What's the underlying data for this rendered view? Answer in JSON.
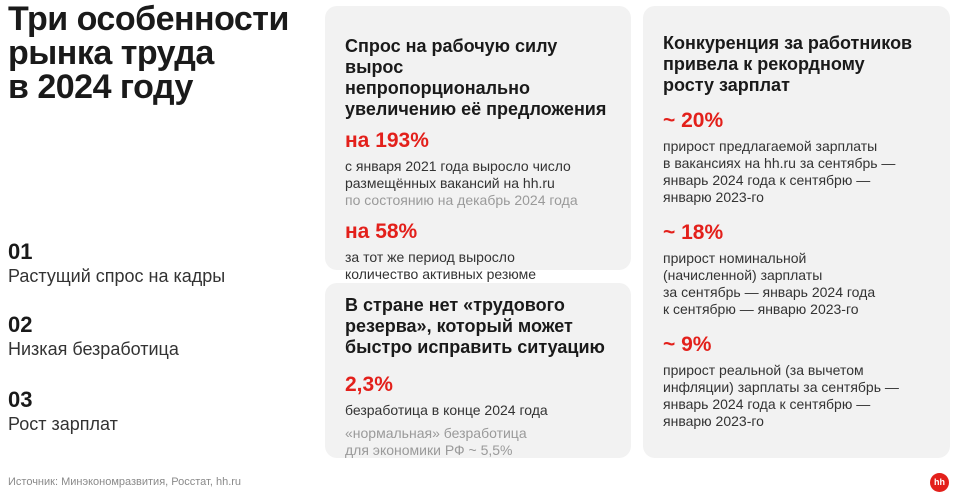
{
  "header": {
    "title": "Три особенности\nрынка труда\nв 2024 году"
  },
  "features": [
    {
      "number": "01",
      "label": "Растущий спрос на кадры"
    },
    {
      "number": "02",
      "label": "Низкая безработица"
    },
    {
      "number": "03",
      "label": "Рост зарплат"
    }
  ],
  "cards": [
    {
      "title": "Спрос на рабочую силу вырос\nнепропорционально\nувеличению её предложения",
      "stats": [
        {
          "value": "на 193%",
          "text": "с января 2021 года выросло число\nразмещённых вакансий на hh.ru",
          "note": "по состоянию на декабрь 2024 года"
        },
        {
          "value": "на 58%",
          "text": "за тот же период выросло\nколичество активных резюме\nсоискателей"
        }
      ]
    },
    {
      "title": "В стране нет «трудового\nрезерва», который может\nбыстро исправить ситуацию",
      "stats": [
        {
          "value": "2,3%",
          "text": "безработица в конце 2024 года",
          "note": "«нормальная» безработица\nдля экономики РФ ~ 5,5%"
        }
      ]
    },
    {
      "title": "Конкуренция за работников\nпривела к рекордному\nросту зарплат",
      "stats": [
        {
          "value": "~ 20%",
          "text": "прирост предлагаемой зарплаты\nв вакансиях на hh.ru за сентябрь —\nянварь 2024 года к сентябрю —\nянварю 2023-го"
        },
        {
          "value": "~ 18%",
          "text": "прирост номинальной\n(начисленной) зарплаты\nза сентябрь — январь 2024 года\nк сентябрю — январю 2023-го"
        },
        {
          "value": "~ 9%",
          "text": "прирост реальной (за вычетом\nинфляции) зарплаты за сентябрь —\nянварь 2024 года к сентябрю —\nянварю 2023-го"
        }
      ]
    }
  ],
  "footer": {
    "source": "Источник: Минэкономразвития, Росстат, hh.ru",
    "logo": "hh"
  }
}
